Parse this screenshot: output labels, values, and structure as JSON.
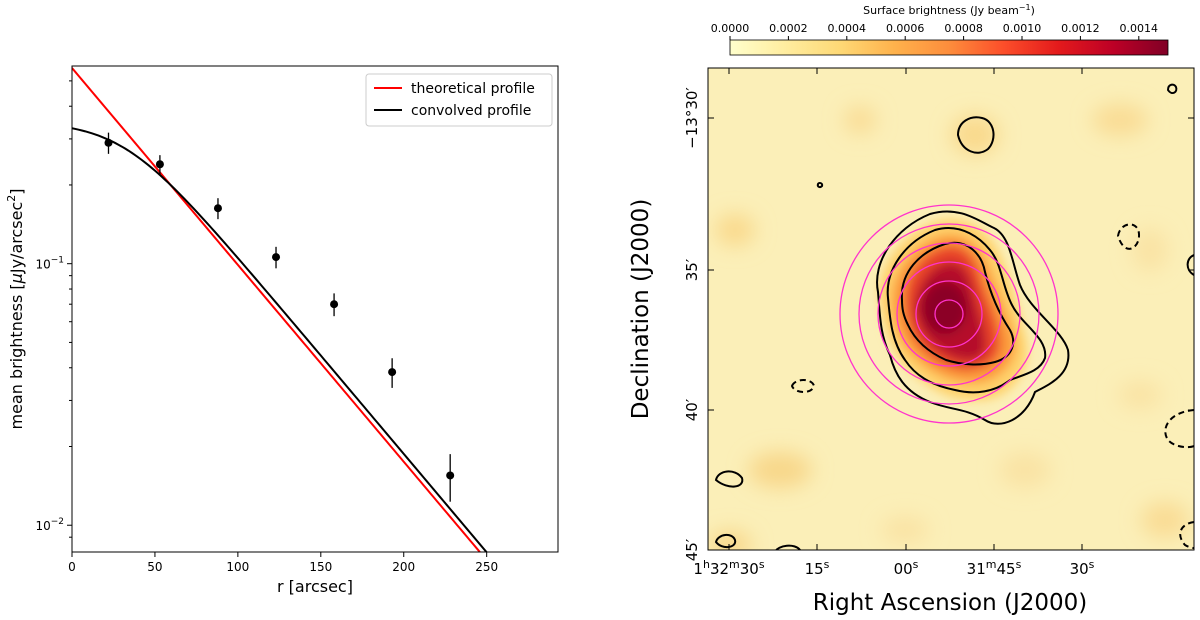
{
  "chart_data": [
    {
      "type": "line",
      "panel": "radial-profile",
      "title": "",
      "xlabel": "r [arcsec]",
      "ylabel": "mean brightness [μJy/arcsec²]",
      "ylabel_main": "mean brightness [",
      "ylabel_mu": "μ",
      "ylabel_unit": "Jy/arcsec",
      "ylabel_sup": "2",
      "ylabel_close": "]",
      "xlim": [
        0,
        293
      ],
      "ylim": [
        0.0079,
        0.57
      ],
      "yscale": "log",
      "xticks": [
        0,
        50,
        100,
        150,
        200,
        250
      ],
      "yticks": [
        {
          "value": 0.1,
          "base": "10",
          "exp": "−1"
        },
        {
          "value": 0.01,
          "base": "10",
          "exp": "−2"
        }
      ],
      "legend_position": "top-right",
      "series": [
        {
          "name": "theoretical profile",
          "color": "#ff0000",
          "kind": "exponential",
          "I0": 0.56,
          "scale_length": 57.7
        },
        {
          "name": "convolved profile",
          "color": "#000000",
          "kind": "convolved",
          "I_center": 0.35,
          "asymptote_I0": 0.6,
          "scale_length": 57.7,
          "smoothing": 50
        }
      ],
      "points": {
        "name": "",
        "color": "#000000",
        "x": [
          22,
          53,
          88,
          123,
          158,
          193,
          228
        ],
        "y": [
          0.29,
          0.24,
          0.163,
          0.106,
          0.07,
          0.0385,
          0.0155
        ],
        "yerr": [
          0.027,
          0.02,
          0.015,
          0.01,
          0.007,
          0.005,
          0.0032
        ]
      }
    },
    {
      "type": "heatmap",
      "panel": "radio-map",
      "title": "",
      "xlabel": "Right Ascension (J2000)",
      "ylabel": "Declination (J2000)",
      "colorbar": {
        "label_main": "Surface brightness (Jy beam",
        "label_sup": "−1",
        "label_close": ")",
        "min": 0.0,
        "max": 0.0015,
        "ticks": [
          "0.0000",
          "0.0002",
          "0.0004",
          "0.0006",
          "0.0008",
          "0.0010",
          "0.0012",
          "0.0014"
        ],
        "tick_values": [
          0,
          0.0002,
          0.0004,
          0.0006,
          0.0008,
          0.001,
          0.0012,
          0.0014
        ],
        "colormap": [
          "#ffffcc",
          "#ffeda0",
          "#fed976",
          "#feb24c",
          "#fd8d3c",
          "#fc4e2a",
          "#e31a1c",
          "#bd0026",
          "#800026"
        ]
      },
      "ra_ticks": [
        {
          "h": "1",
          "hs": "h",
          "m": "32",
          "ms": "m",
          "s": "30",
          "ss": "s"
        },
        {
          "s": "15",
          "ss": "s"
        },
        {
          "s": "00",
          "ss": "s"
        },
        {
          "m": "31",
          "ms": "m",
          "s": "45",
          "ss": "s"
        },
        {
          "s": "30",
          "ss": "s"
        }
      ],
      "dec_ticks": [
        "−13°30′",
        "35′",
        "40′",
        "45′"
      ],
      "source_center_ra_s": 1913.0,
      "source_center_dec_arcmin": 36.7,
      "annulus_color": "#ff33cc",
      "contour_color": "#000000"
    }
  ]
}
